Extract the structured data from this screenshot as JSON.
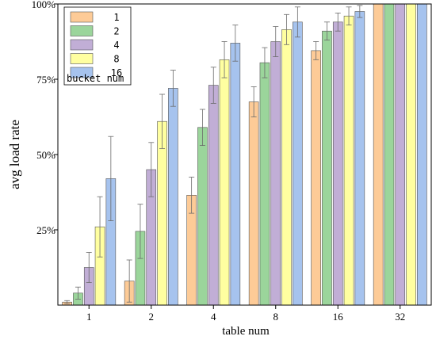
{
  "chart_data": {
    "type": "bar",
    "title": "",
    "xlabel": "table num",
    "ylabel": "avg load rate",
    "categories": [
      "1",
      "2",
      "4",
      "8",
      "16",
      "32"
    ],
    "ylim": [
      0,
      100
    ],
    "yticks": [
      {
        "value": 25,
        "label": "25%"
      },
      {
        "value": 50,
        "label": "50%"
      },
      {
        "value": 75,
        "label": "75%"
      },
      {
        "value": 100,
        "label": "100%"
      }
    ],
    "grid": false,
    "error_bars": true,
    "legend_title": "bucket num",
    "legend_position": "top-left",
    "series": [
      {
        "name": "1",
        "color": "#FDCB97",
        "values": [
          1,
          8,
          36.5,
          67.5,
          84.5,
          100
        ],
        "errors": [
          0.5,
          7,
          6,
          5,
          3,
          0
        ]
      },
      {
        "name": "2",
        "color": "#9BD59B",
        "values": [
          4,
          24.5,
          59,
          80.5,
          91,
          100
        ],
        "errors": [
          2,
          9,
          6,
          5,
          3,
          0
        ]
      },
      {
        "name": "4",
        "color": "#C1AED6",
        "values": [
          12.5,
          45,
          73,
          87.5,
          94,
          100
        ],
        "errors": [
          5,
          9,
          6,
          5,
          3,
          0
        ]
      },
      {
        "name": "8",
        "color": "#FFFFA0",
        "values": [
          26,
          61,
          81.5,
          91.5,
          96,
          100
        ],
        "errors": [
          10,
          9,
          6,
          5,
          3,
          0
        ]
      },
      {
        "name": "16",
        "color": "#A6C3EE",
        "values": [
          42,
          72,
          87,
          94,
          97.5,
          100
        ],
        "errors": [
          14,
          6,
          6,
          5,
          2,
          0
        ]
      }
    ]
  }
}
